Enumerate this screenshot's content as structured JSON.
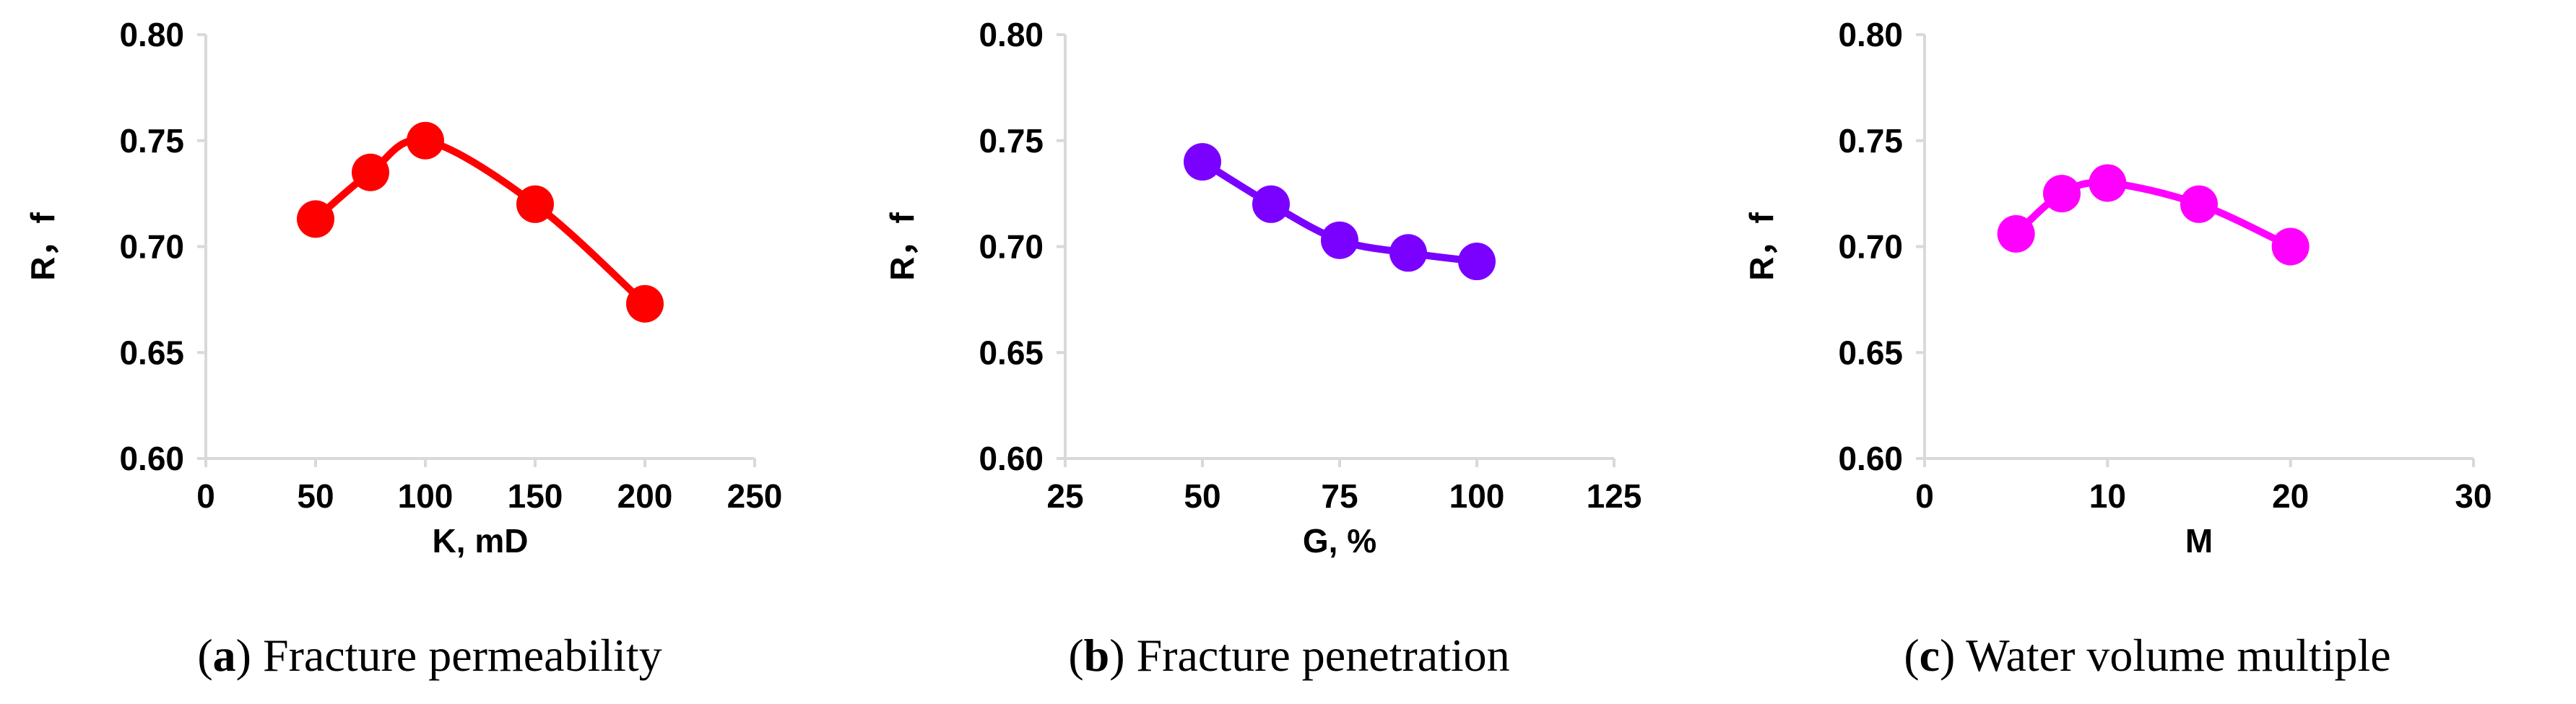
{
  "chart_data": [
    {
      "type": "line",
      "xlabel": "K,  mD",
      "ylabel": "R，f",
      "xlim": [
        0,
        250
      ],
      "ylim": [
        0.6,
        0.8
      ],
      "x_ticks": [
        "0",
        "50",
        "100",
        "150",
        "200",
        "250"
      ],
      "y_ticks": [
        "0.60",
        "0.65",
        "0.70",
        "0.75",
        "0.80"
      ],
      "x": [
        50,
        75,
        100,
        150,
        200
      ],
      "values": [
        0.713,
        0.735,
        0.75,
        0.72,
        0.673
      ],
      "color": "#ff0000",
      "caption_letter": "a",
      "caption_text": "Fracture permeability"
    },
    {
      "type": "line",
      "xlabel": "G,  %",
      "ylabel": "R，f",
      "xlim": [
        25,
        125
      ],
      "ylim": [
        0.6,
        0.8
      ],
      "x_ticks": [
        "25",
        "50",
        "75",
        "100",
        "125"
      ],
      "y_ticks": [
        "0.60",
        "0.65",
        "0.70",
        "0.75",
        "0.80"
      ],
      "x": [
        50,
        62.5,
        75,
        87.5,
        100
      ],
      "values": [
        0.74,
        0.72,
        0.703,
        0.697,
        0.693
      ],
      "color": "#7a00ff",
      "caption_letter": "b",
      "caption_text": "Fracture penetration"
    },
    {
      "type": "line",
      "xlabel": "M",
      "ylabel": "R，f",
      "xlim": [
        0,
        30
      ],
      "ylim": [
        0.6,
        0.8
      ],
      "x_ticks": [
        "0",
        "10",
        "20",
        "30"
      ],
      "y_ticks": [
        "0.60",
        "0.65",
        "0.70",
        "0.75",
        "0.80"
      ],
      "x": [
        5,
        7.5,
        10,
        15,
        20
      ],
      "values": [
        0.706,
        0.725,
        0.73,
        0.72,
        0.7
      ],
      "color": "#ff00ff",
      "caption_letter": "c",
      "caption_text": "Water volume multiple"
    }
  ]
}
